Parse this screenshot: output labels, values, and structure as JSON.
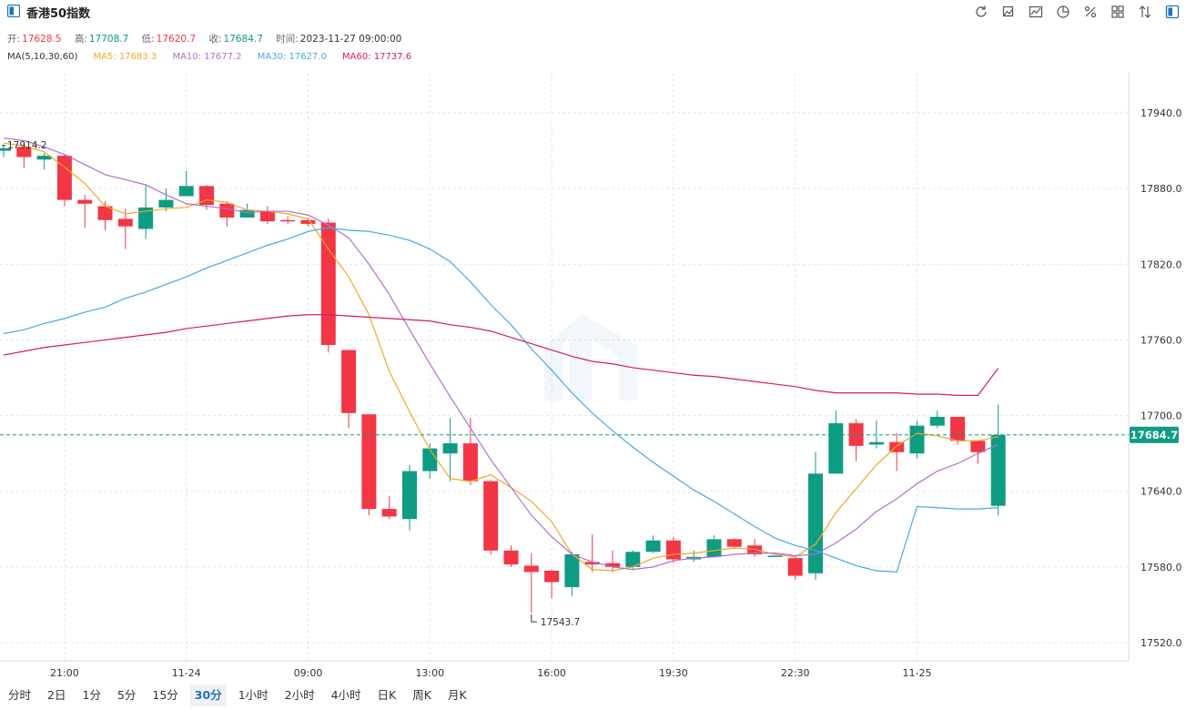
{
  "header": {
    "title": "香港50指数"
  },
  "toolbar": [
    "refresh-icon",
    "draw-icon",
    "chart-style-icon",
    "pie-icon",
    "percent-icon",
    "grid-icon",
    "compare-icon",
    "panel-icon"
  ],
  "ohlc": {
    "open_label": "开:",
    "open": "17628.5",
    "high_label": "高:",
    "high": "17708.7",
    "low_label": "低:",
    "low": "17620.7",
    "close_label": "收:",
    "close": "17684.7",
    "time_label": "时间:",
    "time": "2023-11-27 09:00:00"
  },
  "ma_legend": {
    "label": "MA(5,10,30,60)",
    "ma5": "MA5: 17683.3",
    "ma10": "MA10: 17677.2",
    "ma30": "MA30: 17627.0",
    "ma60": "MA60: 17737.6"
  },
  "colors": {
    "up": "#0e9c83",
    "down": "#f23645",
    "ma5": "#f5a623",
    "ma10": "#b26fce",
    "ma30": "#4aa8e6",
    "ma60": "#d81b60",
    "last": "#0e9c83"
  },
  "periods": [
    "分时",
    "2日",
    "1分",
    "5分",
    "15分",
    "30分",
    "1小时",
    "2小时",
    "4小时",
    "日K",
    "周K",
    "月K"
  ],
  "active_period": "30分",
  "chart_data": {
    "type": "candlestick",
    "title": "香港50指数",
    "ylim": [
      17505,
      17990
    ],
    "yticks": [
      17520,
      17580,
      17640,
      17700,
      17760,
      17820,
      17880,
      17940
    ],
    "ytick_labels": [
      "17520.0",
      "17580.0",
      "17640.0",
      "17700.0",
      "17760.0",
      "17820.0",
      "17880.0",
      "17940.0"
    ],
    "xtick_labels": [
      {
        "index": 3,
        "label": "21:00"
      },
      {
        "index": 9,
        "label": "11-24"
      },
      {
        "index": 15,
        "label": "09:00"
      },
      {
        "index": 21,
        "label": "13:00"
      },
      {
        "index": 27,
        "label": "16:00"
      },
      {
        "index": 33,
        "label": "19:30"
      },
      {
        "index": 39,
        "label": "22:30"
      },
      {
        "index": 45,
        "label": "11-25"
      }
    ],
    "last_price": "17684.7",
    "high_annotation": "17914.2",
    "low_annotation": "17543.7",
    "candles": [
      {
        "o": 17910,
        "h": 17914.2,
        "l": 17905,
        "c": 17912
      },
      {
        "o": 17913,
        "h": 17916,
        "l": 17896,
        "c": 17905
      },
      {
        "o": 17903,
        "h": 17908,
        "l": 17895,
        "c": 17906
      },
      {
        "o": 17906,
        "h": 17907,
        "l": 17866,
        "c": 17871
      },
      {
        "o": 17871,
        "h": 17875,
        "l": 17849,
        "c": 17868
      },
      {
        "o": 17866,
        "h": 17870,
        "l": 17847,
        "c": 17855
      },
      {
        "o": 17856,
        "h": 17864,
        "l": 17832,
        "c": 17850
      },
      {
        "o": 17848,
        "h": 17883,
        "l": 17840,
        "c": 17865
      },
      {
        "o": 17865,
        "h": 17880,
        "l": 17862,
        "c": 17871
      },
      {
        "o": 17874,
        "h": 17894,
        "l": 17874,
        "c": 17882
      },
      {
        "o": 17882,
        "h": 17883,
        "l": 17863,
        "c": 17867
      },
      {
        "o": 17868,
        "h": 17870,
        "l": 17850,
        "c": 17857
      },
      {
        "o": 17857,
        "h": 17868,
        "l": 17857,
        "c": 17863
      },
      {
        "o": 17862,
        "h": 17866,
        "l": 17852,
        "c": 17854
      },
      {
        "o": 17855,
        "h": 17858,
        "l": 17852,
        "c": 17854
      },
      {
        "o": 17855,
        "h": 17857,
        "l": 17850,
        "c": 17852
      },
      {
        "o": 17853,
        "h": 17856,
        "l": 17750,
        "c": 17756
      },
      {
        "o": 17752,
        "h": 17752,
        "l": 17690,
        "c": 17702
      },
      {
        "o": 17701,
        "h": 17701,
        "l": 17621,
        "c": 17626
      },
      {
        "o": 17626,
        "h": 17636,
        "l": 17618,
        "c": 17620
      },
      {
        "o": 17618,
        "h": 17661,
        "l": 17609,
        "c": 17656
      },
      {
        "o": 17656,
        "h": 17678,
        "l": 17650,
        "c": 17674
      },
      {
        "o": 17670,
        "h": 17698,
        "l": 17648,
        "c": 17678
      },
      {
        "o": 17678,
        "h": 17698,
        "l": 17645,
        "c": 17648
      },
      {
        "o": 17648,
        "h": 17649,
        "l": 17590,
        "c": 17593
      },
      {
        "o": 17593,
        "h": 17597,
        "l": 17580,
        "c": 17582
      },
      {
        "o": 17581,
        "h": 17591,
        "l": 17543.7,
        "c": 17576
      },
      {
        "o": 17577,
        "h": 17578,
        "l": 17555,
        "c": 17568
      },
      {
        "o": 17564,
        "h": 17592,
        "l": 17557,
        "c": 17590
      },
      {
        "o": 17584,
        "h": 17606,
        "l": 17576,
        "c": 17582
      },
      {
        "o": 17583,
        "h": 17593,
        "l": 17576,
        "c": 17580
      },
      {
        "o": 17580,
        "h": 17593,
        "l": 17578,
        "c": 17592
      },
      {
        "o": 17592,
        "h": 17605,
        "l": 17591,
        "c": 17601
      },
      {
        "o": 17601,
        "h": 17604,
        "l": 17583,
        "c": 17586
      },
      {
        "o": 17586,
        "h": 17593,
        "l": 17584,
        "c": 17588
      },
      {
        "o": 17588,
        "h": 17605,
        "l": 17588,
        "c": 17602
      },
      {
        "o": 17602,
        "h": 17603,
        "l": 17594,
        "c": 17596
      },
      {
        "o": 17597,
        "h": 17602,
        "l": 17588,
        "c": 17590
      },
      {
        "o": 17589,
        "h": 17589,
        "l": 17589,
        "c": 17589
      },
      {
        "o": 17587,
        "h": 17588,
        "l": 17570,
        "c": 17573
      },
      {
        "o": 17575,
        "h": 17671,
        "l": 17570,
        "c": 17654
      },
      {
        "o": 17654,
        "h": 17704,
        "l": 17654,
        "c": 17694
      },
      {
        "o": 17694,
        "h": 17697,
        "l": 17664,
        "c": 17676
      },
      {
        "o": 17677,
        "h": 17696,
        "l": 17674,
        "c": 17679
      },
      {
        "o": 17679,
        "h": 17686,
        "l": 17656,
        "c": 17671
      },
      {
        "o": 17670,
        "h": 17696,
        "l": 17666,
        "c": 17692
      },
      {
        "o": 17692,
        "h": 17704,
        "l": 17690,
        "c": 17699
      },
      {
        "o": 17699,
        "h": 17699,
        "l": 17677,
        "c": 17680
      },
      {
        "o": 17680,
        "h": 17680,
        "l": 17662,
        "c": 17671
      },
      {
        "o": 17628.5,
        "h": 17708.7,
        "l": 17620.7,
        "c": 17684.7
      }
    ],
    "series": [
      {
        "name": "MA5",
        "values": [
          17916,
          17914,
          17909,
          17897,
          17884,
          17866,
          17860,
          17862,
          17864,
          17865,
          17871,
          17869,
          17863,
          17862,
          17860,
          17856,
          17832,
          17810,
          17780,
          17735,
          17703,
          17673,
          17650,
          17648,
          17653,
          17643,
          17632,
          17616,
          17590,
          17578,
          17577,
          17580,
          17587,
          17590,
          17591,
          17593,
          17595,
          17594,
          17590,
          17588,
          17598,
          17623,
          17642,
          17661,
          17676,
          17686,
          17684,
          17680,
          17680,
          17683.3
        ]
      },
      {
        "name": "MA10",
        "values": [
          17920,
          17918,
          17913,
          17907,
          17899,
          17891,
          17887,
          17883,
          17875,
          17868,
          17866,
          17864,
          17861,
          17862,
          17862,
          17859,
          17851,
          17841,
          17820,
          17796,
          17768,
          17741,
          17715,
          17690,
          17665,
          17643,
          17621,
          17604,
          17590,
          17584,
          17580,
          17578,
          17580,
          17585,
          17587,
          17588,
          17590,
          17591,
          17591,
          17589,
          17590,
          17599,
          17610,
          17624,
          17634,
          17646,
          17656,
          17662,
          17670,
          17677.2
        ]
      },
      {
        "name": "MA30",
        "values": [
          17765,
          17768,
          17773,
          17777,
          17782,
          17786,
          17793,
          17798,
          17804,
          17810,
          17817,
          17823,
          17829,
          17835,
          17840,
          17846,
          17849,
          17847,
          17846,
          17843,
          17839,
          17832,
          17822,
          17806,
          17788,
          17772,
          17753,
          17736,
          17718,
          17702,
          17688,
          17675,
          17663,
          17652,
          17641,
          17632,
          17622,
          17612,
          17603,
          17597,
          17593,
          17587,
          17581,
          17577,
          17576,
          17628,
          17627,
          17626,
          17626,
          17627.0
        ]
      },
      {
        "name": "MA60",
        "values": [
          17748,
          17751,
          17754,
          17756,
          17758,
          17760,
          17762,
          17764,
          17766,
          17769,
          17771,
          17773,
          17775,
          17777,
          17779,
          17780,
          17780,
          17779,
          17778,
          17777,
          17776,
          17775,
          17772,
          17770,
          17767,
          17762,
          17757,
          17752,
          17747,
          17743,
          17741,
          17738,
          17736,
          17734,
          17732,
          17731,
          17729,
          17727,
          17725,
          17723,
          17720,
          17718,
          17718,
          17718,
          17718,
          17717,
          17717,
          17716,
          17716,
          17737.6
        ]
      }
    ]
  }
}
